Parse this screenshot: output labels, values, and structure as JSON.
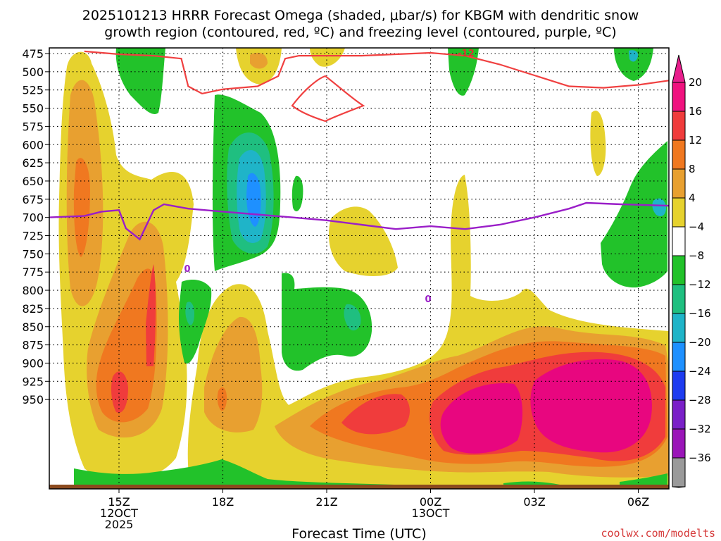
{
  "chart_data": {
    "type": "heatmap",
    "title_line1": "2025101213 HRRR Forecast Omega (shaded, μbar/s) for KBGM with dendritic snow",
    "title_line2": "growth region (contoured, red, ºC) and freezing level (contoured, purple, ºC)",
    "xlabel": "Forecast Time (UTC)",
    "credit": "coolwx.com/modelts",
    "y_ticks": [
      "475",
      "500",
      "525",
      "550",
      "575",
      "600",
      "625",
      "650",
      "675",
      "700",
      "725",
      "750",
      "775",
      "800",
      "825",
      "850",
      "875",
      "900",
      "925",
      "950"
    ],
    "y_values": [
      475,
      500,
      525,
      550,
      575,
      600,
      625,
      650,
      675,
      700,
      725,
      750,
      775,
      800,
      825,
      850,
      875,
      900,
      925,
      950
    ],
    "x_ticks": [
      {
        "hour": 15,
        "l1": "15Z",
        "l2": "12OCT",
        "l3": "2025"
      },
      {
        "hour": 18,
        "l1": "18Z",
        "l2": "",
        "l3": ""
      },
      {
        "hour": 21,
        "l1": "21Z",
        "l2": "",
        "l3": ""
      },
      {
        "hour": 24,
        "l1": "00Z",
        "l2": "13OCT",
        "l3": ""
      },
      {
        "hour": 27,
        "l1": "03Z",
        "l2": "",
        "l3": ""
      },
      {
        "hour": 30,
        "l1": "06Z",
        "l2": "",
        "l3": ""
      }
    ],
    "x_range_hours": [
      13.0,
      31.0
    ],
    "colorbar": {
      "labels": [
        "20",
        "16",
        "12",
        "8",
        "4",
        "−4",
        "−8",
        "−12",
        "−16",
        "−20",
        "−24",
        "−28",
        "−32",
        "−36"
      ],
      "colors_top_to_bottom": [
        "#f0127f",
        "#f03c3c",
        "#f07820",
        "#e8a030",
        "#e6d22e",
        "#ffffff",
        "#22c22a",
        "#1fbf80",
        "#1fb4c8",
        "#1e90ff",
        "#1e3cf0",
        "#7a20c8",
        "#9a16b8",
        "#9a9a9a"
      ],
      "arrow_top": "#e81e8c",
      "arrow_bottom": "#000000"
    },
    "dgz_label": "-12",
    "freezing_labels": [
      "0",
      "0"
    ],
    "freezing_level": {
      "hours": [
        13.0,
        14.0,
        14.5,
        15.0,
        15.2,
        15.6,
        16.0,
        16.3,
        17.0,
        18.0,
        19.0,
        20.0,
        21.0,
        22.0,
        23.0,
        24.0,
        25.0,
        26.0,
        27.0,
        28.0,
        28.5,
        29.5,
        31.0
      ],
      "pressure": [
        700,
        698,
        692,
        690,
        715,
        730,
        690,
        682,
        688,
        692,
        696,
        700,
        704,
        710,
        716,
        712,
        716,
        710,
        700,
        688,
        680,
        682,
        684
      ]
    },
    "dgz_contour": {
      "hours": [
        14.0,
        15.0,
        16.0,
        16.8,
        17.0,
        17.4,
        18.0,
        19.0,
        19.6,
        19.8,
        20.2,
        22.0,
        23.0,
        24.0,
        25.0,
        26.0,
        27.0,
        28.0,
        29.0,
        30.0,
        31.0
      ],
      "pressure": [
        472,
        476,
        478,
        482,
        520,
        530,
        524,
        520,
        506,
        482,
        478,
        478,
        476,
        474,
        478,
        490,
        505,
        520,
        522,
        518,
        512
      ]
    }
  },
  "colors": {
    "pink": "#e8067f",
    "red": "#f03c3c",
    "orange_dark": "#f07820",
    "orange": "#e8a030",
    "yellow": "#e6d22e",
    "green": "#22c22a",
    "teal": "#1fbf80",
    "cyan": "#1fb4c8",
    "blue": "#1e90ff",
    "ground": "#8b4a1e",
    "dgz_line": "#f04040",
    "freeze_line": "#9a1ec8"
  }
}
